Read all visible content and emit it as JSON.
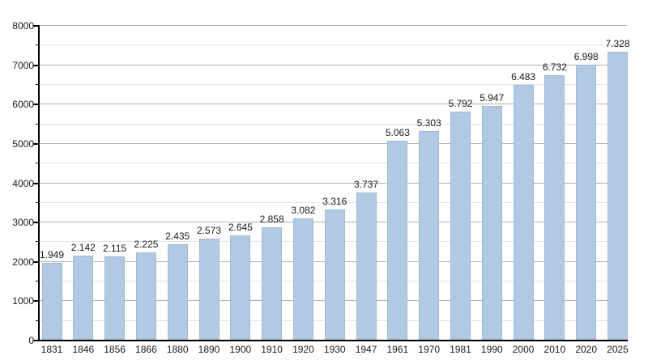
{
  "chart_data": {
    "type": "bar",
    "title": "",
    "xlabel": "",
    "ylabel": "",
    "categories": [
      "1831",
      "1846",
      "1856",
      "1866",
      "1880",
      "1890",
      "1900",
      "1910",
      "1920",
      "1930",
      "1947",
      "1961",
      "1970",
      "1981",
      "1990",
      "2000",
      "2010",
      "2020",
      "2025"
    ],
    "values": [
      1949,
      2142,
      2115,
      2225,
      2435,
      2573,
      2645,
      2858,
      3082,
      3316,
      3737,
      5063,
      5303,
      5792,
      5947,
      6483,
      6732,
      6998,
      7328
    ],
    "value_labels": [
      "1.949",
      "2.142",
      "2.115",
      "2.225",
      "2.435",
      "2.573",
      "2.645",
      "2.858",
      "3.082",
      "3.316",
      "3.737",
      "5.063",
      "5.303",
      "5.792",
      "5.947",
      "6.483",
      "6.732",
      "6.998",
      "7.328"
    ],
    "y_tick_labels": [
      "0",
      "1000",
      "2000",
      "3000",
      "4000",
      "5000",
      "6000",
      "7000",
      "8000"
    ],
    "ylim": [
      0,
      8000
    ],
    "y_major_step": 1000,
    "y_minor_step": 500,
    "grid": "on",
    "legend": "none",
    "colors": {
      "bar_fill": "#b2c9e2",
      "bar_border": "#9fbad6",
      "grid_major": "#b0b0b0",
      "grid_minor": "#e2e2e2",
      "axis": "#000000",
      "text": "#1a1a1a",
      "background": "#ffffff"
    }
  }
}
